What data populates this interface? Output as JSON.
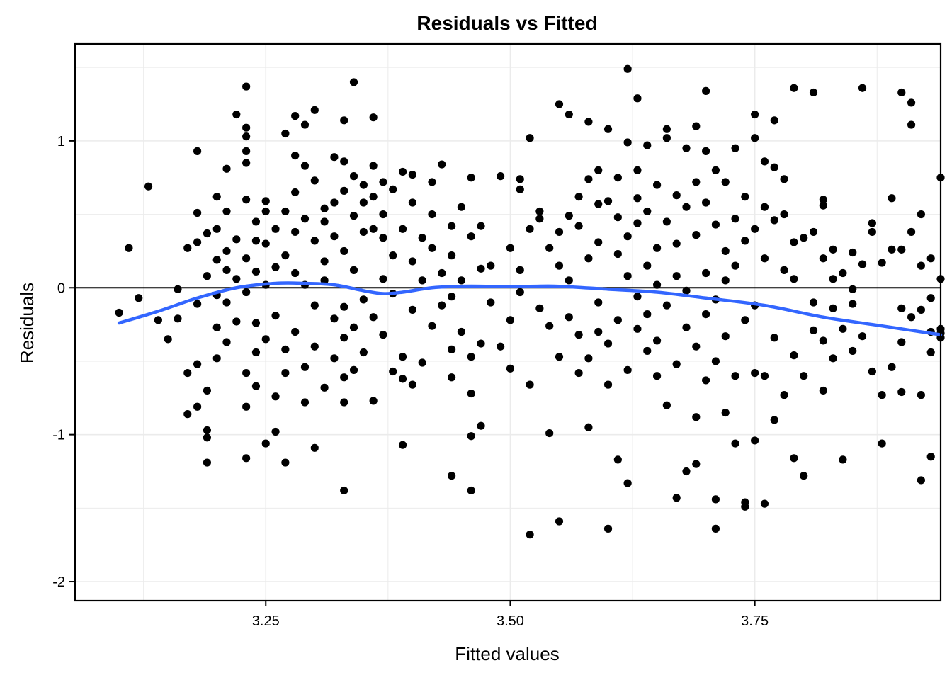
{
  "chart_data": {
    "type": "scatter",
    "title": "Residuals vs Fitted",
    "xlabel": "Fitted values",
    "ylabel": "Residuals",
    "xlim": [
      3.055,
      3.94
    ],
    "ylim": [
      -2.13,
      1.66
    ],
    "x_ticks": [
      3.25,
      3.5,
      3.75
    ],
    "x_tick_labels": [
      "3.25",
      "3.50",
      "3.75"
    ],
    "y_ticks": [
      -2,
      -1,
      0,
      1
    ],
    "y_tick_labels": [
      "-2",
      "-1",
      "0",
      "1"
    ],
    "grid": true,
    "reference_line_y": 0,
    "colors": {
      "points": "#000000",
      "smooth": "#3366ff",
      "grid": "#ebebeb"
    },
    "points": [
      [
        3.1,
        -0.17
      ],
      [
        3.11,
        0.27
      ],
      [
        3.12,
        -0.07
      ],
      [
        3.13,
        0.69
      ],
      [
        3.14,
        -0.22
      ],
      [
        3.15,
        -0.35
      ],
      [
        3.16,
        -0.21
      ],
      [
        3.16,
        -0.01
      ],
      [
        3.17,
        -0.58
      ],
      [
        3.17,
        0.27
      ],
      [
        3.17,
        -0.86
      ],
      [
        3.18,
        0.31
      ],
      [
        3.18,
        0.51
      ],
      [
        3.18,
        -0.52
      ],
      [
        3.18,
        -0.81
      ],
      [
        3.18,
        0.93
      ],
      [
        3.18,
        -0.11
      ],
      [
        3.19,
        -0.97
      ],
      [
        3.19,
        -1.02
      ],
      [
        3.19,
        -1.19
      ],
      [
        3.19,
        0.08
      ],
      [
        3.19,
        -0.7
      ],
      [
        3.19,
        0.37
      ],
      [
        3.2,
        0.4
      ],
      [
        3.2,
        -0.27
      ],
      [
        3.2,
        -0.48
      ],
      [
        3.2,
        0.19
      ],
      [
        3.2,
        0.62
      ],
      [
        3.2,
        -0.05
      ],
      [
        3.21,
        0.25
      ],
      [
        3.21,
        -0.1
      ],
      [
        3.21,
        0.81
      ],
      [
        3.21,
        -0.37
      ],
      [
        3.21,
        0.12
      ],
      [
        3.21,
        0.52
      ],
      [
        3.22,
        1.18
      ],
      [
        3.22,
        0.06
      ],
      [
        3.22,
        -0.23
      ],
      [
        3.22,
        0.33
      ],
      [
        3.23,
        0.93
      ],
      [
        3.23,
        0.85
      ],
      [
        3.23,
        1.37
      ],
      [
        3.23,
        -0.81
      ],
      [
        3.23,
        -1.16
      ],
      [
        3.23,
        1.09
      ],
      [
        3.23,
        1.03
      ],
      [
        3.23,
        0.6
      ],
      [
        3.23,
        -0.03
      ],
      [
        3.23,
        0.2
      ],
      [
        3.23,
        -0.58
      ],
      [
        3.24,
        0.45
      ],
      [
        3.24,
        -0.24
      ],
      [
        3.24,
        0.11
      ],
      [
        3.24,
        -0.44
      ],
      [
        3.24,
        0.32
      ],
      [
        3.24,
        -0.67
      ],
      [
        3.25,
        -1.06
      ],
      [
        3.25,
        0.59
      ],
      [
        3.25,
        0.3
      ],
      [
        3.25,
        0.02
      ],
      [
        3.25,
        -0.35
      ],
      [
        3.25,
        0.52
      ],
      [
        3.26,
        -0.98
      ],
      [
        3.26,
        0.14
      ],
      [
        3.26,
        -0.74
      ],
      [
        3.26,
        0.4
      ],
      [
        3.26,
        -0.19
      ],
      [
        3.27,
        -1.19
      ],
      [
        3.27,
        1.05
      ],
      [
        3.27,
        0.52
      ],
      [
        3.27,
        -0.42
      ],
      [
        3.27,
        0.22
      ],
      [
        3.27,
        -0.58
      ],
      [
        3.28,
        1.17
      ],
      [
        3.28,
        0.65
      ],
      [
        3.28,
        0.1
      ],
      [
        3.28,
        0.9
      ],
      [
        3.28,
        -0.3
      ],
      [
        3.28,
        0.38
      ],
      [
        3.29,
        1.11
      ],
      [
        3.29,
        0.83
      ],
      [
        3.29,
        0.47
      ],
      [
        3.29,
        -0.54
      ],
      [
        3.29,
        -0.78
      ],
      [
        3.29,
        0.02
      ],
      [
        3.3,
        -1.09
      ],
      [
        3.3,
        1.21
      ],
      [
        3.3,
        0.32
      ],
      [
        3.3,
        -0.12
      ],
      [
        3.3,
        0.73
      ],
      [
        3.3,
        -0.4
      ],
      [
        3.31,
        0.54
      ],
      [
        3.31,
        0.18
      ],
      [
        3.31,
        -0.68
      ],
      [
        3.31,
        0.05
      ],
      [
        3.31,
        0.45
      ],
      [
        3.32,
        0.89
      ],
      [
        3.32,
        -0.21
      ],
      [
        3.32,
        0.58
      ],
      [
        3.32,
        0.35
      ],
      [
        3.32,
        -0.48
      ],
      [
        3.33,
        1.14
      ],
      [
        3.33,
        -1.38
      ],
      [
        3.33,
        -0.61
      ],
      [
        3.33,
        0.66
      ],
      [
        3.33,
        0.25
      ],
      [
        3.33,
        -0.13
      ],
      [
        3.33,
        -0.34
      ],
      [
        3.33,
        0.86
      ],
      [
        3.33,
        -0.78
      ],
      [
        3.34,
        1.4
      ],
      [
        3.34,
        0.49
      ],
      [
        3.34,
        0.12
      ],
      [
        3.34,
        -0.27
      ],
      [
        3.34,
        0.76
      ],
      [
        3.34,
        -0.56
      ],
      [
        3.35,
        0.7
      ],
      [
        3.35,
        0.38
      ],
      [
        3.35,
        -0.08
      ],
      [
        3.35,
        0.58
      ],
      [
        3.35,
        -0.44
      ],
      [
        3.36,
        1.16
      ],
      [
        3.36,
        0.83
      ],
      [
        3.36,
        0.4
      ],
      [
        3.36,
        -0.2
      ],
      [
        3.36,
        0.62
      ],
      [
        3.36,
        -0.77
      ],
      [
        3.37,
        0.72
      ],
      [
        3.37,
        0.06
      ],
      [
        3.37,
        0.34
      ],
      [
        3.37,
        -0.32
      ],
      [
        3.37,
        0.5
      ],
      [
        3.38,
        0.67
      ],
      [
        3.38,
        -0.57
      ],
      [
        3.38,
        0.22
      ],
      [
        3.38,
        -0.04
      ],
      [
        3.39,
        0.79
      ],
      [
        3.39,
        -0.62
      ],
      [
        3.39,
        -1.07
      ],
      [
        3.39,
        0.4
      ],
      [
        3.39,
        -0.47
      ],
      [
        3.4,
        0.77
      ],
      [
        3.4,
        -0.66
      ],
      [
        3.4,
        0.18
      ],
      [
        3.4,
        0.58
      ],
      [
        3.4,
        -0.15
      ],
      [
        3.41,
        -0.51
      ],
      [
        3.41,
        0.05
      ],
      [
        3.41,
        0.34
      ],
      [
        3.42,
        0.72
      ],
      [
        3.42,
        0.27
      ],
      [
        3.42,
        -0.26
      ],
      [
        3.42,
        0.5
      ],
      [
        3.43,
        0.1
      ],
      [
        3.43,
        -0.12
      ],
      [
        3.43,
        0.84
      ],
      [
        3.44,
        -1.28
      ],
      [
        3.44,
        0.42
      ],
      [
        3.44,
        -0.61
      ],
      [
        3.44,
        0.22
      ],
      [
        3.44,
        -0.42
      ],
      [
        3.44,
        -0.06
      ],
      [
        3.45,
        0.55
      ],
      [
        3.45,
        0.05
      ],
      [
        3.45,
        -0.3
      ],
      [
        3.46,
        -1.01
      ],
      [
        3.46,
        0.75
      ],
      [
        3.46,
        -1.38
      ],
      [
        3.46,
        -0.72
      ],
      [
        3.46,
        0.35
      ],
      [
        3.46,
        -0.47
      ],
      [
        3.47,
        -0.94
      ],
      [
        3.47,
        0.42
      ],
      [
        3.47,
        0.13
      ],
      [
        3.47,
        -0.38
      ],
      [
        3.48,
        0.15
      ],
      [
        3.48,
        -0.1
      ],
      [
        3.49,
        0.76
      ],
      [
        3.49,
        -0.4
      ],
      [
        3.5,
        0.27
      ],
      [
        3.5,
        -0.55
      ],
      [
        3.5,
        -0.22
      ],
      [
        3.51,
        0.74
      ],
      [
        3.51,
        0.67
      ],
      [
        3.51,
        0.12
      ],
      [
        3.51,
        -0.03
      ],
      [
        3.52,
        1.02
      ],
      [
        3.52,
        -1.68
      ],
      [
        3.52,
        -0.66
      ],
      [
        3.52,
        0.4
      ],
      [
        3.53,
        0.47
      ],
      [
        3.53,
        -0.14
      ],
      [
        3.53,
        0.52
      ],
      [
        3.54,
        -0.99
      ],
      [
        3.54,
        -0.26
      ],
      [
        3.54,
        0.27
      ],
      [
        3.55,
        -1.59
      ],
      [
        3.55,
        1.25
      ],
      [
        3.55,
        0.15
      ],
      [
        3.55,
        -0.47
      ],
      [
        3.55,
        0.38
      ],
      [
        3.56,
        1.18
      ],
      [
        3.56,
        0.49
      ],
      [
        3.56,
        -0.2
      ],
      [
        3.56,
        0.05
      ],
      [
        3.57,
        0.42
      ],
      [
        3.57,
        -0.32
      ],
      [
        3.57,
        0.62
      ],
      [
        3.57,
        -0.58
      ],
      [
        3.58,
        -0.95
      ],
      [
        3.58,
        1.13
      ],
      [
        3.58,
        0.2
      ],
      [
        3.58,
        -0.48
      ],
      [
        3.58,
        0.74
      ],
      [
        3.59,
        0.8
      ],
      [
        3.59,
        0.31
      ],
      [
        3.59,
        -0.1
      ],
      [
        3.59,
        -0.3
      ],
      [
        3.59,
        0.57
      ],
      [
        3.6,
        1.08
      ],
      [
        3.6,
        -1.64
      ],
      [
        3.6,
        -0.66
      ],
      [
        3.6,
        0.59
      ],
      [
        3.6,
        -0.38
      ],
      [
        3.61,
        -1.17
      ],
      [
        3.61,
        0.75
      ],
      [
        3.61,
        0.23
      ],
      [
        3.61,
        -0.22
      ],
      [
        3.61,
        0.48
      ],
      [
        3.62,
        1.49
      ],
      [
        3.62,
        0.99
      ],
      [
        3.62,
        -1.33
      ],
      [
        3.62,
        0.35
      ],
      [
        3.62,
        -0.56
      ],
      [
        3.62,
        0.08
      ],
      [
        3.63,
        1.29
      ],
      [
        3.63,
        0.61
      ],
      [
        3.63,
        -0.28
      ],
      [
        3.63,
        0.44
      ],
      [
        3.63,
        -0.06
      ],
      [
        3.63,
        0.8
      ],
      [
        3.64,
        0.97
      ],
      [
        3.64,
        -0.43
      ],
      [
        3.64,
        0.52
      ],
      [
        3.64,
        0.15
      ],
      [
        3.64,
        -0.18
      ],
      [
        3.65,
        0.7
      ],
      [
        3.65,
        -0.6
      ],
      [
        3.65,
        0.27
      ],
      [
        3.65,
        -0.36
      ],
      [
        3.65,
        0.02
      ],
      [
        3.66,
        1.08
      ],
      [
        3.66,
        1.02
      ],
      [
        3.66,
        -0.8
      ],
      [
        3.66,
        0.45
      ],
      [
        3.66,
        -0.12
      ],
      [
        3.67,
        -1.43
      ],
      [
        3.67,
        0.63
      ],
      [
        3.67,
        0.3
      ],
      [
        3.67,
        -0.52
      ],
      [
        3.67,
        0.08
      ],
      [
        3.68,
        -1.25
      ],
      [
        3.68,
        0.95
      ],
      [
        3.68,
        -0.27
      ],
      [
        3.68,
        0.55
      ],
      [
        3.68,
        -0.02
      ],
      [
        3.69,
        -1.2
      ],
      [
        3.69,
        1.1
      ],
      [
        3.69,
        0.72
      ],
      [
        3.69,
        -0.88
      ],
      [
        3.69,
        0.36
      ],
      [
        3.69,
        -0.4
      ],
      [
        3.7,
        1.34
      ],
      [
        3.7,
        0.93
      ],
      [
        3.7,
        0.58
      ],
      [
        3.7,
        -0.63
      ],
      [
        3.7,
        0.1
      ],
      [
        3.7,
        -0.18
      ],
      [
        3.71,
        -1.44
      ],
      [
        3.71,
        -1.64
      ],
      [
        3.71,
        0.8
      ],
      [
        3.71,
        0.43
      ],
      [
        3.71,
        -0.08
      ],
      [
        3.71,
        -0.5
      ],
      [
        3.72,
        0.72
      ],
      [
        3.72,
        -0.85
      ],
      [
        3.72,
        0.25
      ],
      [
        3.72,
        -0.33
      ],
      [
        3.72,
        0.05
      ],
      [
        3.73,
        -1.06
      ],
      [
        3.73,
        0.95
      ],
      [
        3.73,
        0.47
      ],
      [
        3.73,
        -0.6
      ],
      [
        3.73,
        0.15
      ],
      [
        3.74,
        -1.49
      ],
      [
        3.74,
        -1.46
      ],
      [
        3.74,
        0.62
      ],
      [
        3.74,
        -0.22
      ],
      [
        3.74,
        0.32
      ],
      [
        3.75,
        1.18
      ],
      [
        3.75,
        1.02
      ],
      [
        3.75,
        -1.04
      ],
      [
        3.75,
        -0.58
      ],
      [
        3.75,
        0.4
      ],
      [
        3.75,
        -0.12
      ],
      [
        3.76,
        0.86
      ],
      [
        3.76,
        -1.47
      ],
      [
        3.76,
        0.55
      ],
      [
        3.76,
        -0.6
      ],
      [
        3.76,
        0.2
      ],
      [
        3.77,
        1.14
      ],
      [
        3.77,
        0.82
      ],
      [
        3.77,
        -0.34
      ],
      [
        3.77,
        0.46
      ],
      [
        3.77,
        -0.9
      ],
      [
        3.78,
        0.74
      ],
      [
        3.78,
        0.12
      ],
      [
        3.78,
        -0.73
      ],
      [
        3.78,
        0.5
      ],
      [
        3.79,
        1.36
      ],
      [
        3.79,
        0.31
      ],
      [
        3.79,
        -1.16
      ],
      [
        3.79,
        -0.46
      ],
      [
        3.79,
        0.06
      ],
      [
        3.8,
        0.34
      ],
      [
        3.8,
        -1.28
      ],
      [
        3.8,
        -0.6
      ],
      [
        3.81,
        1.33
      ],
      [
        3.81,
        -0.29
      ],
      [
        3.81,
        0.38
      ],
      [
        3.81,
        -0.1
      ],
      [
        3.82,
        0.6
      ],
      [
        3.82,
        -0.7
      ],
      [
        3.82,
        0.2
      ],
      [
        3.82,
        -0.36
      ],
      [
        3.82,
        0.56
      ],
      [
        3.83,
        0.26
      ],
      [
        3.83,
        -0.48
      ],
      [
        3.83,
        0.06
      ],
      [
        3.83,
        -0.14
      ],
      [
        3.84,
        -1.17
      ],
      [
        3.84,
        0.1
      ],
      [
        3.84,
        -0.28
      ],
      [
        3.85,
        0.24
      ],
      [
        3.85,
        -0.11
      ],
      [
        3.85,
        -0.43
      ],
      [
        3.85,
        -0.01
      ],
      [
        3.86,
        1.36
      ],
      [
        3.86,
        -0.33
      ],
      [
        3.86,
        0.16
      ],
      [
        3.87,
        0.38
      ],
      [
        3.87,
        -0.57
      ],
      [
        3.87,
        0.44
      ],
      [
        3.88,
        -1.06
      ],
      [
        3.88,
        -0.73
      ],
      [
        3.88,
        0.17
      ],
      [
        3.89,
        0.61
      ],
      [
        3.89,
        -0.54
      ],
      [
        3.89,
        0.26
      ],
      [
        3.9,
        1.33
      ],
      [
        3.9,
        -0.37
      ],
      [
        3.9,
        -0.71
      ],
      [
        3.9,
        0.26
      ],
      [
        3.9,
        -0.14
      ],
      [
        3.91,
        1.26
      ],
      [
        3.91,
        -0.2
      ],
      [
        3.91,
        1.11
      ],
      [
        3.91,
        0.38
      ],
      [
        3.92,
        0.5
      ],
      [
        3.92,
        -0.73
      ],
      [
        3.92,
        -1.31
      ],
      [
        3.92,
        0.15
      ],
      [
        3.92,
        -0.15
      ],
      [
        3.93,
        -0.44
      ],
      [
        3.93,
        -1.15
      ],
      [
        3.93,
        0.2
      ],
      [
        3.93,
        -0.3
      ],
      [
        3.93,
        -0.07
      ],
      [
        3.94,
        -0.28
      ],
      [
        3.94,
        -0.31
      ],
      [
        3.94,
        0.75
      ],
      [
        3.94,
        0.06
      ],
      [
        3.94,
        -0.34
      ]
    ],
    "smooth_line": [
      [
        3.1,
        -0.24
      ],
      [
        3.14,
        -0.16
      ],
      [
        3.18,
        -0.07
      ],
      [
        3.22,
        0.0
      ],
      [
        3.26,
        0.03
      ],
      [
        3.29,
        0.03
      ],
      [
        3.32,
        0.02
      ],
      [
        3.35,
        -0.02
      ],
      [
        3.37,
        -0.04
      ],
      [
        3.39,
        -0.03
      ],
      [
        3.42,
        0.0
      ],
      [
        3.45,
        0.01
      ],
      [
        3.48,
        0.01
      ],
      [
        3.52,
        0.01
      ],
      [
        3.55,
        0.01
      ],
      [
        3.6,
        -0.01
      ],
      [
        3.65,
        -0.03
      ],
      [
        3.7,
        -0.07
      ],
      [
        3.76,
        -0.12
      ],
      [
        3.82,
        -0.2
      ],
      [
        3.88,
        -0.26
      ],
      [
        3.94,
        -0.32
      ]
    ]
  }
}
